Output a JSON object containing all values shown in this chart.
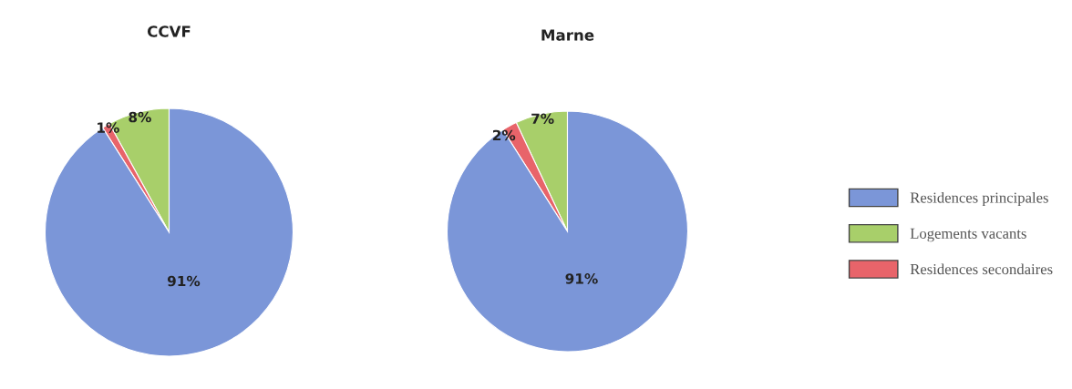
{
  "chart_data": [
    {
      "type": "pie",
      "title": "CCVF",
      "categories": [
        "Residences principales",
        "Logements vacants",
        "Residences secondaires"
      ],
      "values": [
        91,
        8,
        1
      ],
      "colors": [
        "#7b96d8",
        "#a8cf6a",
        "#e8646a"
      ],
      "value_labels": [
        "91%",
        "8%",
        "1%"
      ],
      "legend": "right"
    },
    {
      "type": "pie",
      "title": "Marne",
      "categories": [
        null,
        null,
        null
      ],
      "values": [
        91,
        7,
        2
      ],
      "colors": [
        "#7b96d8",
        "#a8cf6a",
        "#e8646a"
      ],
      "value_labels": [
        "91%",
        "7%",
        "2%"
      ]
    }
  ]
}
